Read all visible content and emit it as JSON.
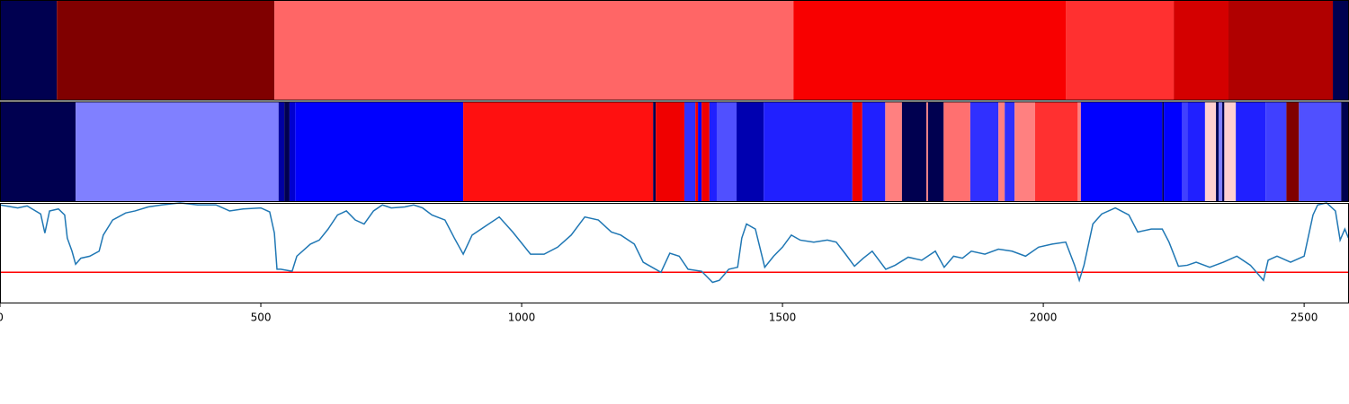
{
  "chart_data": [
    {
      "type": "segments",
      "xlim": [
        0,
        2586
      ],
      "segments": [
        {
          "start": 0,
          "end": 109,
          "color": "#000050"
        },
        {
          "start": 109,
          "end": 526,
          "color": "#800000"
        },
        {
          "start": 526,
          "end": 1521,
          "color": "#ff6666"
        },
        {
          "start": 1521,
          "end": 2043,
          "color": "#f80000"
        },
        {
          "start": 2043,
          "end": 2250,
          "color": "#ff3030"
        },
        {
          "start": 2250,
          "end": 2355,
          "color": "#d40000"
        },
        {
          "start": 2355,
          "end": 2555,
          "color": "#b00000"
        },
        {
          "start": 2555,
          "end": 2586,
          "color": "#000050"
        }
      ]
    },
    {
      "type": "segments",
      "xlim": [
        0,
        2586
      ],
      "segments": [
        {
          "start": 0,
          "end": 145,
          "color": "#000050"
        },
        {
          "start": 145,
          "end": 534,
          "color": "#8080ff"
        },
        {
          "start": 534,
          "end": 545,
          "color": "#0000a0"
        },
        {
          "start": 545,
          "end": 555,
          "color": "#000050"
        },
        {
          "start": 555,
          "end": 566,
          "color": "#0000d0"
        },
        {
          "start": 566,
          "end": 888,
          "color": "#0000ff"
        },
        {
          "start": 888,
          "end": 1252,
          "color": "#ff1010"
        },
        {
          "start": 1252,
          "end": 1257,
          "color": "#000050"
        },
        {
          "start": 1257,
          "end": 1312,
          "color": "#f00000"
        },
        {
          "start": 1312,
          "end": 1333,
          "color": "#3030ff"
        },
        {
          "start": 1333,
          "end": 1338,
          "color": "#f00000"
        },
        {
          "start": 1338,
          "end": 1345,
          "color": "#0000ff"
        },
        {
          "start": 1345,
          "end": 1360,
          "color": "#f00000"
        },
        {
          "start": 1360,
          "end": 1374,
          "color": "#2020ff"
        },
        {
          "start": 1374,
          "end": 1412,
          "color": "#5050ff"
        },
        {
          "start": 1412,
          "end": 1464,
          "color": "#0000b0"
        },
        {
          "start": 1464,
          "end": 1634,
          "color": "#2020ff"
        },
        {
          "start": 1634,
          "end": 1653,
          "color": "#f00000"
        },
        {
          "start": 1653,
          "end": 1697,
          "color": "#2020ff"
        },
        {
          "start": 1697,
          "end": 1729,
          "color": "#ff8080"
        },
        {
          "start": 1729,
          "end": 1776,
          "color": "#000050"
        },
        {
          "start": 1776,
          "end": 1779,
          "color": "#ff8080"
        },
        {
          "start": 1779,
          "end": 1809,
          "color": "#000050"
        },
        {
          "start": 1809,
          "end": 1860,
          "color": "#ff7070"
        },
        {
          "start": 1860,
          "end": 1914,
          "color": "#3030ff"
        },
        {
          "start": 1914,
          "end": 1926,
          "color": "#ff8080"
        },
        {
          "start": 1926,
          "end": 1945,
          "color": "#3030ff"
        },
        {
          "start": 1945,
          "end": 1984,
          "color": "#ff8080"
        },
        {
          "start": 1984,
          "end": 2066,
          "color": "#ff3030"
        },
        {
          "start": 2066,
          "end": 2072,
          "color": "#ff8080"
        },
        {
          "start": 2072,
          "end": 2228,
          "color": "#0000ff"
        },
        {
          "start": 2228,
          "end": 2231,
          "color": "#000050"
        },
        {
          "start": 2231,
          "end": 2266,
          "color": "#0000ff"
        },
        {
          "start": 2266,
          "end": 2276,
          "color": "#4040ff"
        },
        {
          "start": 2276,
          "end": 2310,
          "color": "#2020ff"
        },
        {
          "start": 2310,
          "end": 2331,
          "color": "#ffd0d0"
        },
        {
          "start": 2331,
          "end": 2336,
          "color": "#000050"
        },
        {
          "start": 2336,
          "end": 2343,
          "color": "#8080ff"
        },
        {
          "start": 2343,
          "end": 2347,
          "color": "#000050"
        },
        {
          "start": 2347,
          "end": 2369,
          "color": "#ffd0d0"
        },
        {
          "start": 2369,
          "end": 2426,
          "color": "#2020ff"
        },
        {
          "start": 2426,
          "end": 2466,
          "color": "#4040ff"
        },
        {
          "start": 2466,
          "end": 2490,
          "color": "#800000"
        },
        {
          "start": 2490,
          "end": 2571,
          "color": "#5050ff"
        },
        {
          "start": 2571,
          "end": 2586,
          "color": "#000050"
        }
      ]
    },
    {
      "type": "line",
      "xlim": [
        0,
        2586
      ],
      "ylim": [
        0,
        1
      ],
      "color": "#1f77b4",
      "xticks": [
        0,
        500,
        1000,
        1500,
        2000,
        2500
      ],
      "hline": {
        "value": 0.31,
        "color": "#ff0000"
      },
      "x": [
        0,
        34,
        52,
        78,
        86,
        95,
        112,
        124,
        129,
        138,
        145,
        155,
        172,
        190,
        198,
        216,
        241,
        259,
        284,
        310,
        345,
        379,
        414,
        440,
        466,
        500,
        517,
        526,
        531,
        538,
        560,
        569,
        595,
        612,
        629,
        647,
        664,
        681,
        698,
        716,
        733,
        750,
        776,
        793,
        810,
        828,
        853,
        871,
        888,
        905,
        931,
        957,
        983,
        1017,
        1043,
        1069,
        1095,
        1121,
        1147,
        1172,
        1190,
        1216,
        1233,
        1250,
        1267,
        1284,
        1302,
        1319,
        1345,
        1366,
        1379,
        1397,
        1414,
        1422,
        1431,
        1448,
        1466,
        1483,
        1500,
        1517,
        1534,
        1560,
        1586,
        1603,
        1621,
        1638,
        1655,
        1672,
        1698,
        1716,
        1741,
        1767,
        1793,
        1810,
        1828,
        1845,
        1862,
        1888,
        1914,
        1940,
        1966,
        1991,
        2017,
        2043,
        2060,
        2069,
        2078,
        2095,
        2112,
        2138,
        2164,
        2181,
        2207,
        2228,
        2241,
        2259,
        2276,
        2293,
        2319,
        2345,
        2371,
        2397,
        2422,
        2431,
        2448,
        2474,
        2500,
        2517,
        2526,
        2543,
        2560,
        2569,
        2578,
        2585
      ],
      "values": [
        0.98,
        0.95,
        0.97,
        0.89,
        0.7,
        0.92,
        0.94,
        0.88,
        0.65,
        0.52,
        0.39,
        0.45,
        0.47,
        0.52,
        0.68,
        0.83,
        0.9,
        0.92,
        0.96,
        0.98,
        1.0,
        0.98,
        0.98,
        0.92,
        0.94,
        0.95,
        0.91,
        0.7,
        0.34,
        0.34,
        0.32,
        0.47,
        0.59,
        0.63,
        0.74,
        0.88,
        0.92,
        0.83,
        0.79,
        0.92,
        0.98,
        0.95,
        0.96,
        0.98,
        0.95,
        0.88,
        0.83,
        0.65,
        0.49,
        0.68,
        0.77,
        0.86,
        0.71,
        0.49,
        0.49,
        0.56,
        0.68,
        0.86,
        0.83,
        0.71,
        0.68,
        0.59,
        0.41,
        0.36,
        0.31,
        0.5,
        0.47,
        0.34,
        0.32,
        0.21,
        0.23,
        0.34,
        0.36,
        0.65,
        0.79,
        0.74,
        0.36,
        0.47,
        0.56,
        0.68,
        0.63,
        0.61,
        0.63,
        0.61,
        0.49,
        0.37,
        0.45,
        0.52,
        0.34,
        0.38,
        0.46,
        0.43,
        0.52,
        0.36,
        0.47,
        0.45,
        0.52,
        0.49,
        0.54,
        0.52,
        0.47,
        0.56,
        0.59,
        0.61,
        0.38,
        0.23,
        0.38,
        0.79,
        0.89,
        0.95,
        0.88,
        0.71,
        0.74,
        0.74,
        0.61,
        0.37,
        0.38,
        0.41,
        0.36,
        0.41,
        0.47,
        0.38,
        0.23,
        0.43,
        0.47,
        0.41,
        0.47,
        0.88,
        0.98,
        1.0,
        0.92,
        0.63,
        0.74,
        0.65
      ]
    }
  ]
}
